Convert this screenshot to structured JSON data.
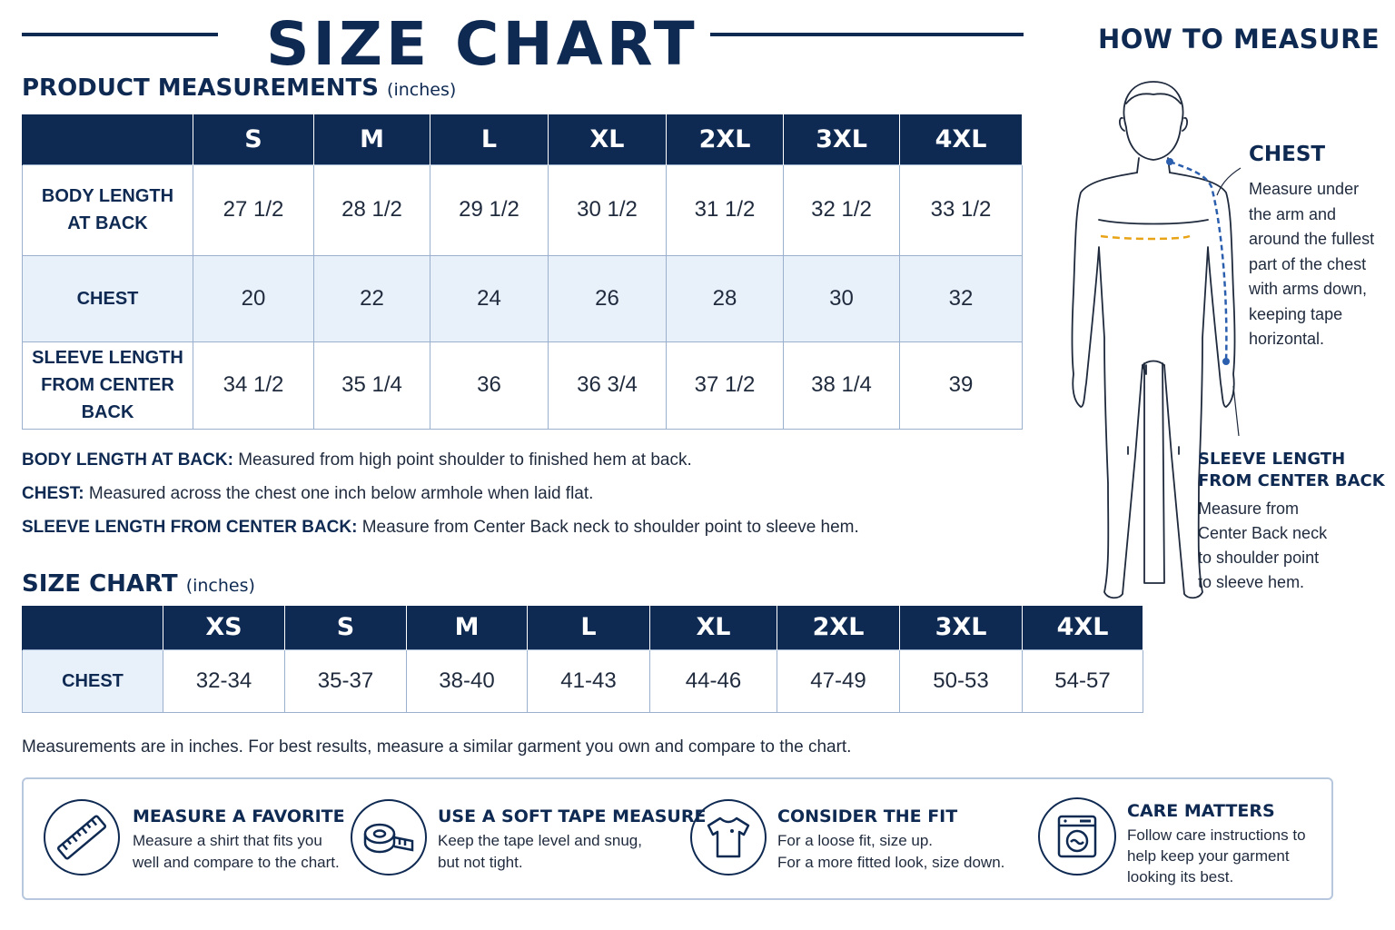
{
  "header": {
    "title": "SIZE CHART",
    "how_to_measure": "HOW TO MEASURE"
  },
  "product": {
    "title": "PRODUCT MEASUREMENTS",
    "unit": "(inches)",
    "sizes": [
      "S",
      "M",
      "L",
      "XL",
      "2XL",
      "3XL",
      "4XL"
    ],
    "rows": [
      {
        "label_lines": [
          "BODY LENGTH",
          "AT BACK"
        ],
        "values": [
          "27 1/2",
          "28 1/2",
          "29 1/2",
          "30 1/2",
          "31 1/2",
          "32 1/2",
          "33 1/2"
        ]
      },
      {
        "label_lines": [
          "CHEST"
        ],
        "values": [
          "20",
          "22",
          "24",
          "26",
          "28",
          "30",
          "32"
        ]
      },
      {
        "label_lines": [
          "SLEEVE LENGTH",
          "FROM CENTER BACK"
        ],
        "values": [
          "34 1/2",
          "35 1/4",
          "36",
          "36 3/4",
          "37 1/2",
          "38 1/4",
          "39"
        ]
      }
    ]
  },
  "definitions": [
    {
      "term": "BODY LENGTH AT BACK:",
      "text": "Measured from high point shoulder to finished hem at back."
    },
    {
      "term": "CHEST:",
      "text": "Measured across the chest one inch below armhole when laid flat."
    },
    {
      "term": "SLEEVE LENGTH FROM CENTER BACK:",
      "text": "Measure from Center Back neck to shoulder point to sleeve hem."
    }
  ],
  "size_chart": {
    "title": "SIZE CHART",
    "unit": "(inches)",
    "sizes": [
      "XS",
      "S",
      "M",
      "L",
      "XL",
      "2XL",
      "3XL",
      "4XL"
    ],
    "row_label": "CHEST",
    "values": [
      "32-34",
      "35-37",
      "38-40",
      "41-43",
      "44-46",
      "47-49",
      "50-53",
      "54-57"
    ]
  },
  "note": "Measurements are in inches. For best results, measure a similar garment you own and compare to the chart.",
  "tips": [
    {
      "icon": "ruler-icon",
      "title": "MEASURE A FAVORITE",
      "lines": [
        "Measure a shirt that fits you",
        "well and compare to the chart."
      ]
    },
    {
      "icon": "tape-measure-icon",
      "title": "USE A SOFT TAPE MEASURE",
      "lines": [
        "Keep the tape level and snug,",
        "but not tight."
      ]
    },
    {
      "icon": "tshirt-icon",
      "title": "CONSIDER THE FIT",
      "lines": [
        "For a loose fit, size up.",
        "For a more fitted look, size down."
      ]
    },
    {
      "icon": "washing-machine-icon",
      "title": "CARE MATTERS",
      "lines": [
        "Follow care instructions to",
        "help keep your garment",
        "looking its best."
      ]
    }
  ],
  "how_to": {
    "chest": {
      "title": "CHEST",
      "lines": [
        "Measure under",
        "the arm and",
        "around the fullest",
        "part of the chest",
        "with arms down,",
        "keeping tape",
        "horizontal."
      ]
    },
    "sleeve": {
      "title_lines": [
        "SLEEVE LENGTH",
        "FROM CENTER BACK"
      ],
      "lines": [
        "Measure from",
        "Center Back neck",
        "to shoulder point",
        "to sleeve hem."
      ]
    }
  },
  "colors": {
    "navy": "#0f2a52",
    "row_shade": "#e8f0fa",
    "chest_tape": "#e8a317",
    "sleeve_tape": "#2b5fae"
  }
}
